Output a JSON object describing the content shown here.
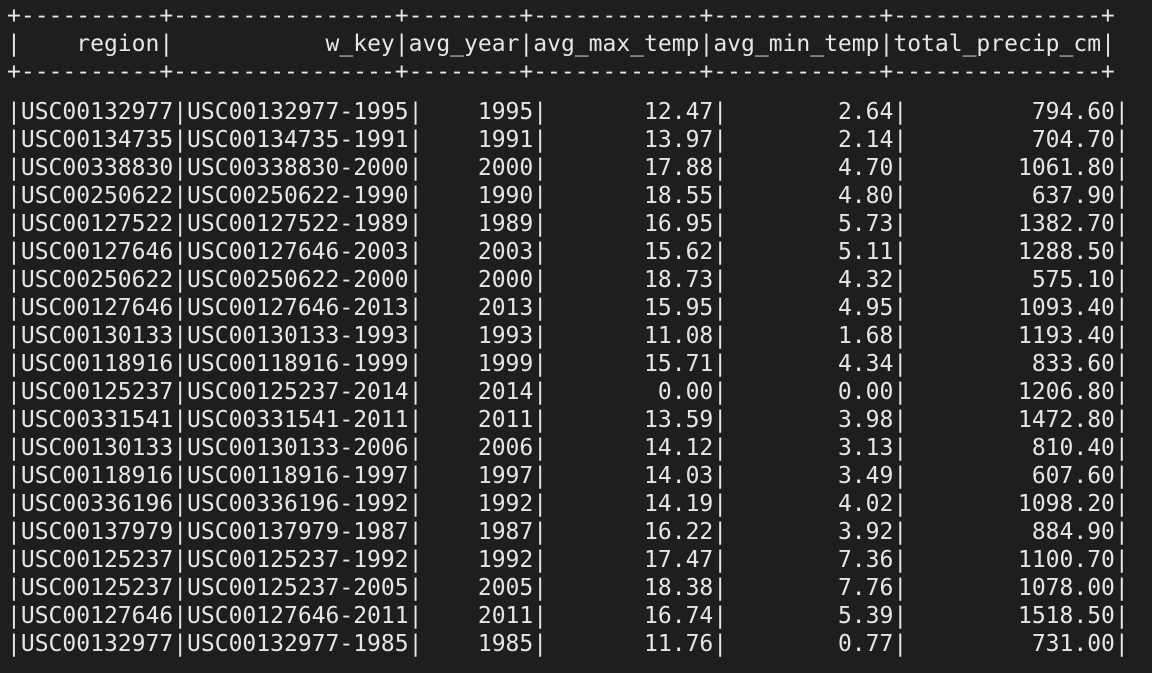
{
  "table": {
    "border": "+----------+----------------+--------+------------+------------+---------------+",
    "columns": [
      {
        "label": "region",
        "width": 10
      },
      {
        "label": "w_key",
        "width": 16
      },
      {
        "label": "avg_year",
        "width": 8
      },
      {
        "label": "avg_max_temp",
        "width": 12
      },
      {
        "label": "avg_min_temp",
        "width": 12
      },
      {
        "label": "total_precip_cm",
        "width": 15
      }
    ],
    "rows": [
      [
        "USC00132977",
        "USC00132977-1995",
        "1995",
        "12.47",
        "2.64",
        "794.60"
      ],
      [
        "USC00134735",
        "USC00134735-1991",
        "1991",
        "13.97",
        "2.14",
        "704.70"
      ],
      [
        "USC00338830",
        "USC00338830-2000",
        "2000",
        "17.88",
        "4.70",
        "1061.80"
      ],
      [
        "USC00250622",
        "USC00250622-1990",
        "1990",
        "18.55",
        "4.80",
        "637.90"
      ],
      [
        "USC00127522",
        "USC00127522-1989",
        "1989",
        "16.95",
        "5.73",
        "1382.70"
      ],
      [
        "USC00127646",
        "USC00127646-2003",
        "2003",
        "15.62",
        "5.11",
        "1288.50"
      ],
      [
        "USC00250622",
        "USC00250622-2000",
        "2000",
        "18.73",
        "4.32",
        "575.10"
      ],
      [
        "USC00127646",
        "USC00127646-2013",
        "2013",
        "15.95",
        "4.95",
        "1093.40"
      ],
      [
        "USC00130133",
        "USC00130133-1993",
        "1993",
        "11.08",
        "1.68",
        "1193.40"
      ],
      [
        "USC00118916",
        "USC00118916-1999",
        "1999",
        "15.71",
        "4.34",
        "833.60"
      ],
      [
        "USC00125237",
        "USC00125237-2014",
        "2014",
        "0.00",
        "0.00",
        "1206.80"
      ],
      [
        "USC00331541",
        "USC00331541-2011",
        "2011",
        "13.59",
        "3.98",
        "1472.80"
      ],
      [
        "USC00130133",
        "USC00130133-2006",
        "2006",
        "14.12",
        "3.13",
        "810.40"
      ],
      [
        "USC00118916",
        "USC00118916-1997",
        "1997",
        "14.03",
        "3.49",
        "607.60"
      ],
      [
        "USC00336196",
        "USC00336196-1992",
        "1992",
        "14.19",
        "4.02",
        "1098.20"
      ],
      [
        "USC00137979",
        "USC00137979-1987",
        "1987",
        "16.22",
        "3.92",
        "884.90"
      ],
      [
        "USC00125237",
        "USC00125237-1992",
        "1992",
        "17.47",
        "7.36",
        "1100.70"
      ],
      [
        "USC00125237",
        "USC00125237-2005",
        "2005",
        "18.38",
        "7.76",
        "1078.00"
      ],
      [
        "USC00127646",
        "USC00127646-2011",
        "2011",
        "16.74",
        "5.39",
        "1518.50"
      ],
      [
        "USC00132977",
        "USC00132977-1985",
        "1985",
        "11.76",
        "0.77",
        "731.00"
      ]
    ]
  }
}
